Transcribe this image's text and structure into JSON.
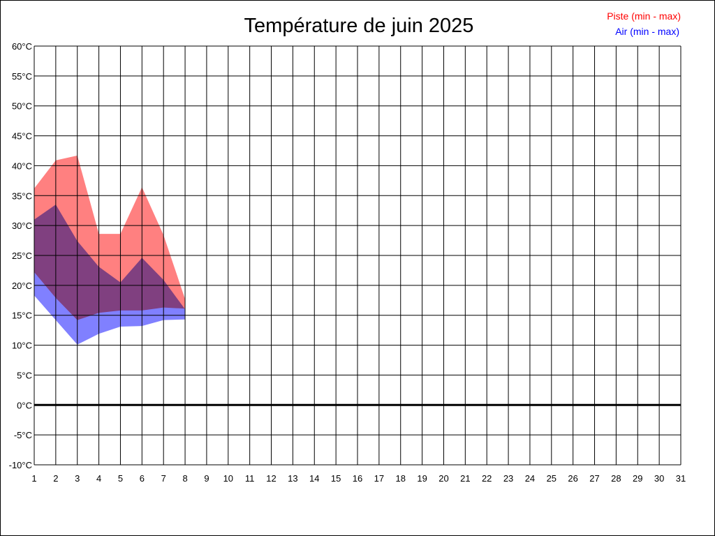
{
  "chart_data": {
    "type": "area",
    "title": "Température de juin 2025",
    "xlabel": "",
    "ylabel": "",
    "x_ticks": [
      1,
      2,
      3,
      4,
      5,
      6,
      7,
      8,
      9,
      10,
      11,
      12,
      13,
      14,
      15,
      16,
      17,
      18,
      19,
      20,
      21,
      22,
      23,
      24,
      25,
      26,
      27,
      28,
      29,
      30,
      31
    ],
    "y_ticks": [
      60,
      55,
      50,
      45,
      40,
      35,
      30,
      25,
      20,
      15,
      10,
      5,
      0,
      -5,
      -10
    ],
    "y_unit": "°C",
    "xlim": [
      1,
      31
    ],
    "ylim": [
      -10,
      60
    ],
    "grid": true,
    "legend_position": "top-right",
    "series": [
      {
        "name": "Piste (min - max)",
        "color": "#ff0000",
        "fill": "#ff8080",
        "x": [
          1,
          2,
          3,
          4,
          5,
          6,
          7,
          8
        ],
        "min": [
          22.2,
          17.9,
          14.2,
          15.4,
          15.8,
          15.8,
          16.3,
          16.1
        ],
        "max": [
          36.2,
          40.9,
          41.7,
          28.6,
          28.6,
          36.4,
          28.4,
          17.7
        ]
      },
      {
        "name": "Air (min - max)",
        "color": "#0000ff",
        "fill": "#8080ff",
        "x": [
          1,
          2,
          3,
          4,
          5,
          6,
          7,
          8
        ],
        "min": [
          18.3,
          14.2,
          10.1,
          11.9,
          13.1,
          13.2,
          14.2,
          14.3
        ],
        "max": [
          31.0,
          33.5,
          27.4,
          23.1,
          20.5,
          24.6,
          20.9,
          16.0
        ]
      }
    ]
  }
}
